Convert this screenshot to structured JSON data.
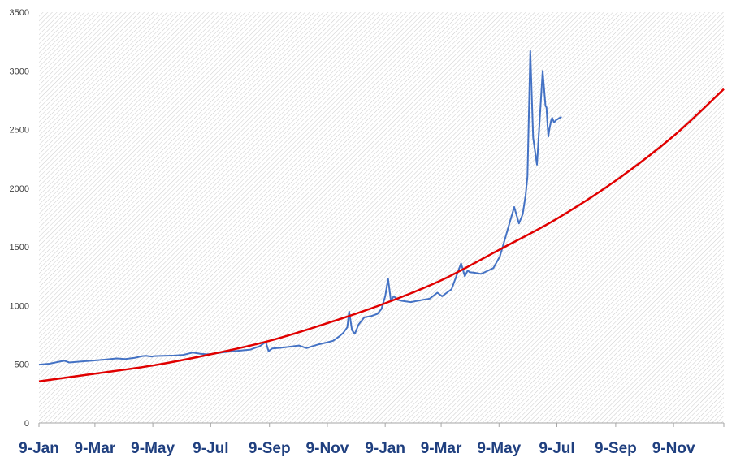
{
  "chart_data": {
    "type": "line",
    "title": "",
    "xlabel": "",
    "ylabel": "",
    "ylim": [
      0,
      3500
    ],
    "y_ticks": [
      0,
      500,
      1000,
      1500,
      2000,
      2500,
      3000,
      3500
    ],
    "x_tick_labels": [
      "9-Jan",
      "9-Mar",
      "9-May",
      "9-Jul",
      "9-Sep",
      "9-Nov",
      "9-Jan",
      "9-Mar",
      "9-May",
      "9-Jul",
      "9-Sep",
      "9-Nov"
    ],
    "x_ticks": [
      "2021-01-09",
      "2021-03-09",
      "2021-05-09",
      "2021-07-09",
      "2021-09-09",
      "2021-11-09",
      "2022-01-09",
      "2022-03-09",
      "2022-05-09",
      "2022-07-09",
      "2022-09-09",
      "2022-11-09"
    ],
    "xlim": [
      "2021-01-09",
      "2023-01-01"
    ],
    "grid": false,
    "plot_background": "diagonal-hatch",
    "colors": {
      "series": "#4472c4",
      "trend": "#e00000",
      "hatch": "#c8c8c8",
      "axis": "#a6a6a6",
      "ytick": "#404040",
      "xtick": "#1f3f7f"
    },
    "series": [
      {
        "style": "line",
        "x": [
          "2021-01-09",
          "2021-01-20",
          "2021-02-01",
          "2021-02-05",
          "2021-02-10",
          "2021-02-20",
          "2021-03-05",
          "2021-03-20",
          "2021-04-01",
          "2021-04-10",
          "2021-04-20",
          "2021-04-28",
          "2021-05-02",
          "2021-05-08",
          "2021-05-10",
          "2021-05-20",
          "2021-06-01",
          "2021-06-10",
          "2021-06-20",
          "2021-06-28",
          "2021-07-05",
          "2021-07-12",
          "2021-07-20",
          "2021-08-01",
          "2021-08-10",
          "2021-08-20",
          "2021-08-30",
          "2021-09-05",
          "2021-09-08",
          "2021-09-12",
          "2021-09-20",
          "2021-10-01",
          "2021-10-10",
          "2021-10-18",
          "2021-10-22",
          "2021-10-30",
          "2021-11-08",
          "2021-11-15",
          "2021-11-22",
          "2021-11-26",
          "2021-11-30",
          "2021-12-02",
          "2021-12-05",
          "2021-12-08",
          "2021-12-12",
          "2021-12-18",
          "2021-12-25",
          "2022-01-01",
          "2022-01-05",
          "2022-01-09",
          "2022-01-12",
          "2022-01-15",
          "2022-01-18",
          "2022-01-22",
          "2022-01-27",
          "2022-02-05",
          "2022-02-15",
          "2022-02-25",
          "2022-03-05",
          "2022-03-10",
          "2022-03-20",
          "2022-03-25",
          "2022-03-30",
          "2022-04-03",
          "2022-04-06",
          "2022-04-08",
          "2022-04-13",
          "2022-04-20",
          "2022-04-28",
          "2022-05-03",
          "2022-05-10",
          "2022-05-15",
          "2022-05-20",
          "2022-05-25",
          "2022-05-30",
          "2022-06-03",
          "2022-06-06",
          "2022-06-08",
          "2022-06-11",
          "2022-06-14",
          "2022-06-18",
          "2022-06-21",
          "2022-06-24",
          "2022-06-27",
          "2022-06-28",
          "2022-06-29",
          "2022-06-30",
          "2022-07-01",
          "2022-07-03",
          "2022-07-04",
          "2022-07-06",
          "2022-07-08",
          "2022-07-10",
          "2022-07-12",
          "2022-07-14"
        ],
        "values": [
          497,
          505,
          525,
          530,
          515,
          522,
          530,
          540,
          550,
          545,
          555,
          570,
          572,
          565,
          570,
          572,
          575,
          580,
          600,
          590,
          585,
          590,
          600,
          610,
          618,
          625,
          655,
          690,
          612,
          635,
          640,
          650,
          660,
          638,
          648,
          668,
          685,
          700,
          740,
          770,
          815,
          950,
          790,
          760,
          840,
          900,
          910,
          930,
          970,
          1080,
          1230,
          1040,
          1080,
          1050,
          1040,
          1030,
          1045,
          1060,
          1110,
          1080,
          1140,
          1250,
          1360,
          1250,
          1300,
          1285,
          1280,
          1270,
          1300,
          1320,
          1420,
          1560,
          1700,
          1840,
          1700,
          1780,
          1940,
          2100,
          3170,
          2430,
          2200,
          2600,
          3000,
          2700,
          2690,
          2560,
          2440,
          2500,
          2580,
          2600,
          2560,
          2580,
          2590,
          2600,
          2610
        ]
      },
      {
        "style": "smooth-line",
        "x": [
          "2021-01-09",
          "2021-03-09",
          "2021-05-09",
          "2021-07-09",
          "2021-09-09",
          "2021-11-09",
          "2022-01-09",
          "2022-03-09",
          "2022-05-09",
          "2022-07-09",
          "2022-09-09",
          "2022-11-09",
          "2023-01-01"
        ],
        "values": [
          355,
          420,
          490,
          585,
          700,
          850,
          1020,
          1215,
          1475,
          1740,
          2065,
          2445,
          2845
        ]
      }
    ]
  }
}
